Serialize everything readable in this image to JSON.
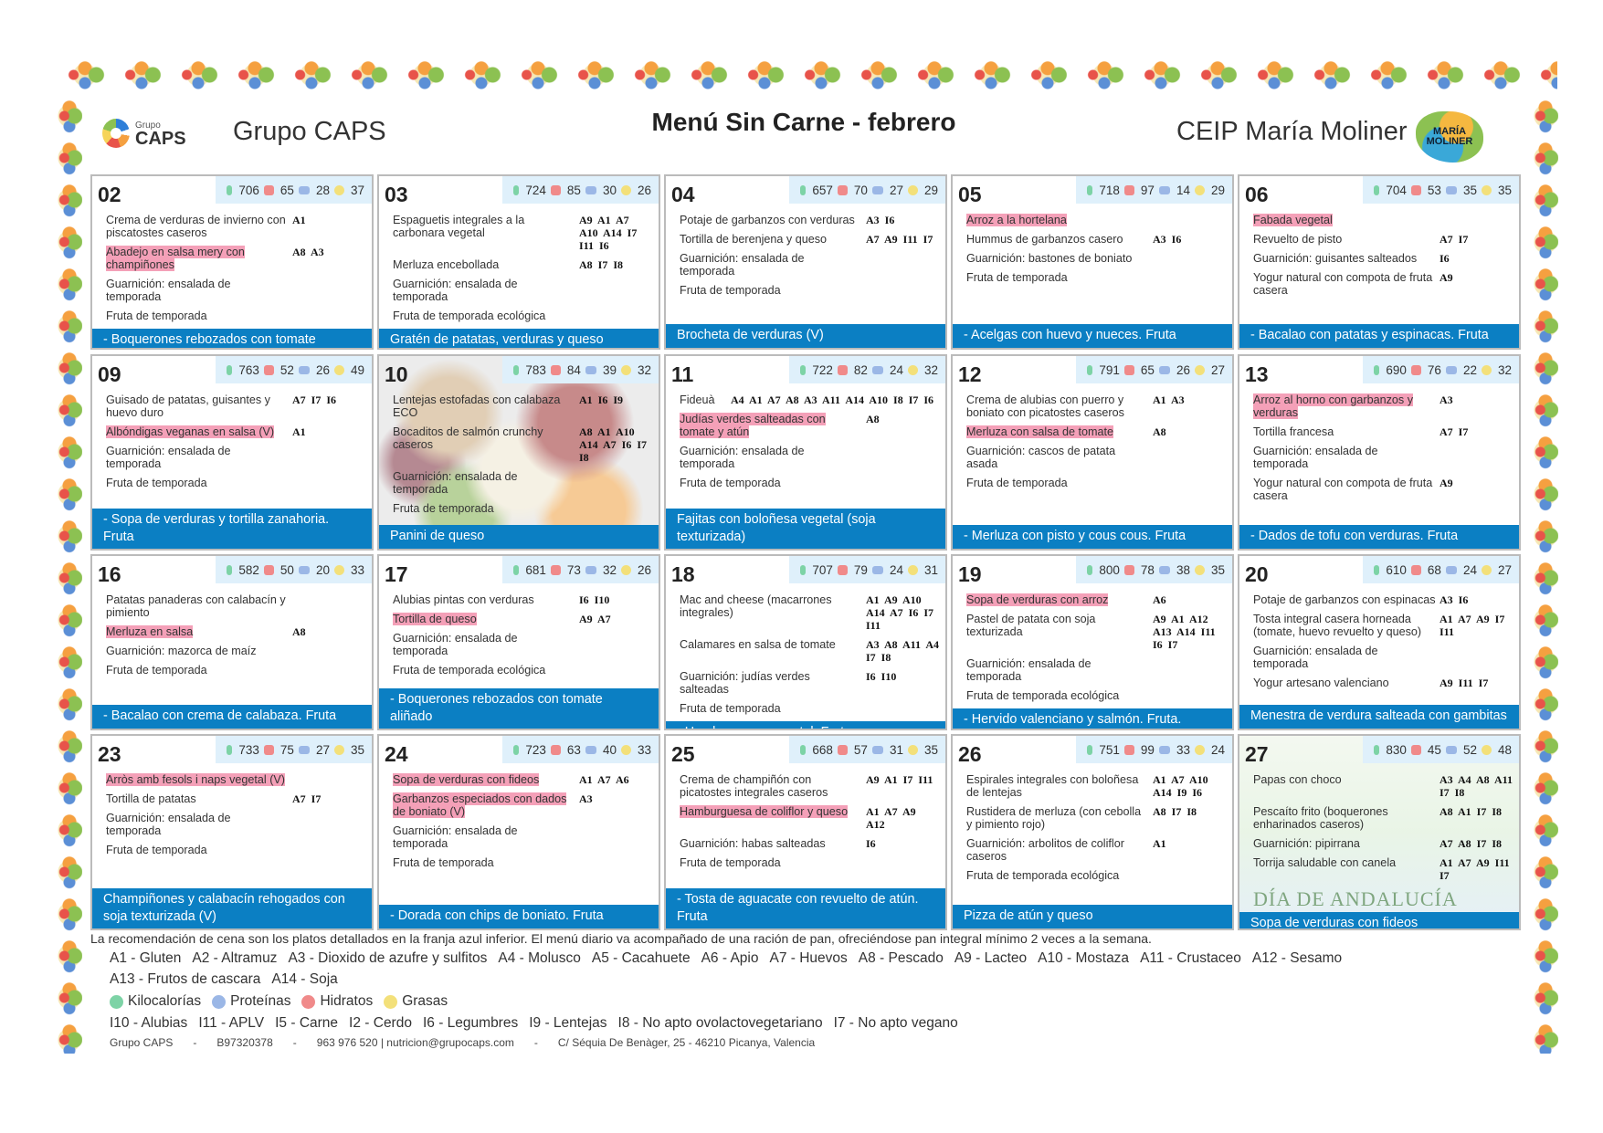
{
  "header": {
    "org_logo_text": "Grupo",
    "org_logo_brand": "CAPS",
    "org_name": "Grupo CAPS",
    "title": "Menú Sin Carne - febrero",
    "school": "CEIP María Moliner",
    "school_logo_text": "MARÍA MOLINER"
  },
  "colors": {
    "dinner_band": "#0b7fc3",
    "highlight": "#f4a0b8",
    "nutrition_bg": "#dff0fb"
  },
  "weeks": [
    [
      {
        "day": "02",
        "kcal": "706",
        "hc": "65",
        "prot": "28",
        "fat": "37",
        "items": [
          {
            "name": "Crema de verduras de invierno con piscatostes caseros",
            "al": "A1"
          },
          {
            "name": "Abadejo en salsa mery con champiñones",
            "al": "A8 A3",
            "hl": true
          },
          {
            "name": "Guarnición: ensalada de temporada",
            "al": ""
          },
          {
            "name": "Fruta de temporada",
            "al": ""
          }
        ],
        "dinner": "- Boquerones rebozados con tomate aliñado"
      },
      {
        "day": "03",
        "kcal": "724",
        "hc": "85",
        "prot": "30",
        "fat": "26",
        "items": [
          {
            "name": "Espaguetis integrales a la carbonara vegetal",
            "al": "A9 A1 A7 A10 A14 I7 I11 I6"
          },
          {
            "name": "Merluza encebollada",
            "al": "A8 I7 I8"
          },
          {
            "name": "Guarnición: ensalada de temporada",
            "al": ""
          },
          {
            "name": "Fruta de temporada ecológica",
            "al": ""
          }
        ],
        "dinner": "Gratén de patatas, verduras y queso"
      },
      {
        "day": "04",
        "kcal": "657",
        "hc": "70",
        "prot": "27",
        "fat": "29",
        "items": [
          {
            "name": "Potaje de garbanzos con verduras",
            "al": "A3 I6"
          },
          {
            "name": "Tortilla de berenjena y queso",
            "al": "A7 A9 I11 I7"
          },
          {
            "name": "Guarnición: ensalada de temporada",
            "al": ""
          },
          {
            "name": "Fruta de temporada",
            "al": ""
          }
        ],
        "dinner": "Brocheta de verduras (V)"
      },
      {
        "day": "05",
        "kcal": "718",
        "hc": "97",
        "prot": "14",
        "fat": "29",
        "items": [
          {
            "name": "Arroz a la hortelana",
            "al": "",
            "hl": true
          },
          {
            "name": "Hummus de garbanzos casero",
            "al": "A3 I6"
          },
          {
            "name": "Guarnición: bastones de boniato",
            "al": ""
          },
          {
            "name": "Fruta de temporada",
            "al": ""
          }
        ],
        "dinner": "- Acelgas con huevo y nueces. Fruta"
      },
      {
        "day": "06",
        "kcal": "704",
        "hc": "53",
        "prot": "35",
        "fat": "35",
        "items": [
          {
            "name": "Fabada vegetal",
            "al": "",
            "hl": true
          },
          {
            "name": "Revuelto de pisto",
            "al": "A7 I7"
          },
          {
            "name": "Guarnición: guisantes salteados",
            "al": "I6"
          },
          {
            "name": "Yogur natural con compota de fruta casera",
            "al": "A9"
          }
        ],
        "dinner": "- Bacalao con patatas y espinacas. Fruta"
      }
    ],
    [
      {
        "day": "09",
        "kcal": "763",
        "hc": "52",
        "prot": "26",
        "fat": "49",
        "items": [
          {
            "name": "Guisado de patatas, guisantes y huevo duro",
            "al": "A7 I7 I6"
          },
          {
            "name": "Albóndigas veganas en salsa (V)",
            "al": "A1",
            "hl": true
          },
          {
            "name": "Guarnición: ensalada de temporada",
            "al": ""
          },
          {
            "name": "Fruta de temporada",
            "al": ""
          }
        ],
        "dinner": "- Sopa de verduras y tortilla zanahoria. Fruta"
      },
      {
        "day": "10",
        "kcal": "783",
        "hc": "84",
        "prot": "39",
        "fat": "32",
        "bg": "legumes",
        "items": [
          {
            "name": "Lentejas estofadas con calabaza ECO",
            "al": "A1 I6 I9"
          },
          {
            "name": "Bocaditos de salmón crunchy caseros",
            "al": "A8 A1 A10 A14 A7 I6 I7 I8"
          },
          {
            "name": "Guarnición: ensalada de temporada",
            "al": ""
          },
          {
            "name": "Fruta de temporada",
            "al": ""
          }
        ],
        "dinner": "Panini de queso"
      },
      {
        "day": "11",
        "kcal": "722",
        "hc": "82",
        "prot": "24",
        "fat": "32",
        "items": [
          {
            "name": "Fideuà",
            "al": "A4 A1 A7 A8 A3 A11 A14 A10 I8 I7 I6",
            "wide": true
          },
          {
            "name": "Judías verdes salteadas con tomate y atún",
            "al": "A8",
            "hl": true
          },
          {
            "name": "Guarnición: ensalada de temporada",
            "al": ""
          },
          {
            "name": "Fruta de temporada",
            "al": ""
          }
        ],
        "dinner": "Fajitas con boloñesa vegetal (soja texturizada)"
      },
      {
        "day": "12",
        "kcal": "791",
        "hc": "65",
        "prot": "26",
        "fat": "27",
        "items": [
          {
            "name": "Crema de alubias con puerro y boniato con picatostes caseros",
            "al": "A1 A3"
          },
          {
            "name": "Merluza con salsa de tomate",
            "al": "A8",
            "hl": true
          },
          {
            "name": "Guarnición: cascos de patata asada",
            "al": ""
          },
          {
            "name": "Fruta de temporada",
            "al": ""
          }
        ],
        "dinner": "- Merluza con pisto y cous cous. Fruta"
      },
      {
        "day": "13",
        "kcal": "690",
        "hc": "76",
        "prot": "22",
        "fat": "32",
        "items": [
          {
            "name": "Arroz al horno con garbanzos y verduras",
            "al": "A3",
            "hl": true
          },
          {
            "name": "Tortilla francesa",
            "al": "A7 I7"
          },
          {
            "name": "Guarnición: ensalada de temporada",
            "al": ""
          },
          {
            "name": "Yogur natural con compota de fruta casera",
            "al": "A9"
          }
        ],
        "dinner": "- Dados de tofu con verduras. Fruta"
      }
    ],
    [
      {
        "day": "16",
        "kcal": "582",
        "hc": "50",
        "prot": "20",
        "fat": "33",
        "items": [
          {
            "name": "Patatas panaderas con calabacín y pimiento",
            "al": ""
          },
          {
            "name": "Merluza en salsa",
            "al": "A8",
            "hl": true
          },
          {
            "name": "Guarnición: mazorca de maíz",
            "al": ""
          },
          {
            "name": "Fruta de temporada",
            "al": ""
          }
        ],
        "dinner": "- Bacalao con crema de calabaza. Fruta"
      },
      {
        "day": "17",
        "kcal": "681",
        "hc": "73",
        "prot": "32",
        "fat": "26",
        "items": [
          {
            "name": "Alubias pintas con verduras",
            "al": "I6 I10"
          },
          {
            "name": "Tortilla de queso",
            "al": "A9 A7",
            "hl": true
          },
          {
            "name": "Guarnición: ensalada de temporada",
            "al": ""
          },
          {
            "name": "Fruta de temporada ecológica",
            "al": ""
          }
        ],
        "dinner": "- Boquerones rebozados con tomate aliñado"
      },
      {
        "day": "18",
        "kcal": "707",
        "hc": "79",
        "prot": "24",
        "fat": "31",
        "items": [
          {
            "name": "Mac and cheese (macarrones integrales)",
            "al": "A1 A9 A10 A14 A7 I6 I7 I11"
          },
          {
            "name": "Calamares en salsa de tomate",
            "al": "A3 A8 A11 A4 I7 I8"
          },
          {
            "name": "Guarnición: judías verdes salteadas",
            "al": "I6 I10"
          },
          {
            "name": "Fruta de temporada",
            "al": ""
          }
        ],
        "dinner": "- Hamburguesa vegetal. Fruta"
      },
      {
        "day": "19",
        "kcal": "800",
        "hc": "78",
        "prot": "38",
        "fat": "35",
        "items": [
          {
            "name": "Sopa de verduras con arroz",
            "al": "A6",
            "hl": true
          },
          {
            "name": "Pastel de patata con soja texturizada",
            "al": "A9 A1 A12 A13 A14 I11 I6 I7"
          },
          {
            "name": "Guarnición: ensalada de temporada",
            "al": ""
          },
          {
            "name": "Fruta de temporada ecológica",
            "al": ""
          }
        ],
        "dinner": "- Hervido valenciano y salmón. Fruta."
      },
      {
        "day": "20",
        "kcal": "610",
        "hc": "68",
        "prot": "24",
        "fat": "27",
        "items": [
          {
            "name": "Potaje de garbanzos con espinacas",
            "al": "A3 I6"
          },
          {
            "name": "Tosta integral casera horneada (tomate, huevo revuelto y queso)",
            "al": "A1 A7 A9 I7 I11"
          },
          {
            "name": "Guarnición: ensalada de temporada",
            "al": ""
          },
          {
            "name": "Yogur artesano valenciano",
            "al": "A9 I11 I7"
          }
        ],
        "dinner": "Menestra de verdura salteada con gambitas"
      }
    ],
    [
      {
        "day": "23",
        "kcal": "733",
        "hc": "75",
        "prot": "27",
        "fat": "35",
        "items": [
          {
            "name": "Arròs amb fesols i naps vegetal (V)",
            "al": "",
            "hl": true
          },
          {
            "name": "Tortilla de patatas",
            "al": "A7 I7"
          },
          {
            "name": "Guarnición: ensalada de temporada",
            "al": ""
          },
          {
            "name": "Fruta de temporada",
            "al": ""
          }
        ],
        "dinner": "Champiñones y calabacín rehogados con soja texturizada (V)"
      },
      {
        "day": "24",
        "kcal": "723",
        "hc": "63",
        "prot": "40",
        "fat": "33",
        "items": [
          {
            "name": "Sopa de verduras con fideos",
            "al": "A1 A7 A6",
            "hl": true
          },
          {
            "name": "Garbanzos especiados con dados de boniato (V)",
            "al": "A3",
            "hl": true
          },
          {
            "name": "Guarnición: ensalada de temporada",
            "al": ""
          },
          {
            "name": "Fruta de temporada",
            "al": ""
          }
        ],
        "dinner": "- Dorada con chips de boniato. Fruta"
      },
      {
        "day": "25",
        "kcal": "668",
        "hc": "57",
        "prot": "31",
        "fat": "35",
        "items": [
          {
            "name": "Crema de champiñón con picatostes integrales caseros",
            "al": "A9 A1 I7 I11"
          },
          {
            "name": "Hamburguesa de coliflor y queso",
            "al": "A1 A7 A9 A12",
            "hl": true
          },
          {
            "name": "Guarnición: habas salteadas",
            "al": "I6"
          },
          {
            "name": "Fruta de temporada",
            "al": ""
          }
        ],
        "dinner": "- Tosta de aguacate con revuelto de atún. Fruta"
      },
      {
        "day": "26",
        "kcal": "751",
        "hc": "99",
        "prot": "33",
        "fat": "24",
        "items": [
          {
            "name": "Espirales integrales con boloñesa de lentejas",
            "al": "A1 A7 A10 A14 I9 I6"
          },
          {
            "name": "Rustidera de merluza (con cebolla y pimiento rojo)",
            "al": "A8 I7 I8"
          },
          {
            "name": "Guarnición: arbolitos de coliflor caseros",
            "al": "A1"
          },
          {
            "name": "Fruta de temporada ecológica",
            "al": ""
          }
        ],
        "dinner": "Pizza de atún y queso"
      },
      {
        "day": "27",
        "kcal": "830",
        "hc": "45",
        "prot": "52",
        "fat": "48",
        "bg": "andalucia",
        "watermark": "DÍA DE ANDALUCÍA",
        "items": [
          {
            "name": "Papas con choco",
            "al": "A3 A4 A8 A11 I7 I8"
          },
          {
            "name": "Pescaíto frito (boquerones enharinados caseros)",
            "al": "A8 A1 I7 I8"
          },
          {
            "name": "Guarnición: pipirrana",
            "al": "A7 A8 I7 I8"
          },
          {
            "name": "Torrija saludable con canela",
            "al": "A1 A7 A9 I11 I7"
          }
        ],
        "dinner": "Sopa de verduras con fideos"
      }
    ]
  ],
  "footer": {
    "note": "La recomendación de cena son los platos detallados en la franja azul inferior. El menú diario va acompañado de una ración de pan, ofreciéndose pan integral mínimo 2 veces a la semana.",
    "allergens_1": [
      "A1 - Gluten",
      "A2 - Altramuz",
      "A3 - Dioxido de azufre y sulfitos",
      "A4 - Molusco",
      "A5 - Cacahuete",
      "A6 - Apio",
      "A7 - Huevos",
      "A8 - Pescado",
      "A9 - Lacteo",
      "A10 - Mostaza",
      "A11 - Crustaceo",
      "A12 - Sesamo"
    ],
    "allergens_2": [
      "A13 - Frutos de cascara",
      "A14 - Soja"
    ],
    "legend": [
      {
        "label": "Kilocalorías",
        "color": "#7dd3a6"
      },
      {
        "label": "Proteínas",
        "color": "#9bb7e6"
      },
      {
        "label": "Hidratos",
        "color": "#f08a8a"
      },
      {
        "label": "Grasas",
        "color": "#f3e07a"
      }
    ],
    "intolerances": [
      "I10 - Alubias",
      "I11 - APLV",
      "I5 - Carne",
      "I2 - Cerdo",
      "I6 - Legumbres",
      "I9 - Lentejas",
      "I8 - No apto ovolactovegetariano",
      "I7 - No apto vegano"
    ],
    "contact": [
      "Grupo CAPS",
      "-",
      "B97320378",
      "-",
      "963 976 520 | nutricion@grupocaps.com",
      "-",
      "C/ Séquia De Benàger, 25 - 46210 Picanya, Valencia"
    ]
  }
}
